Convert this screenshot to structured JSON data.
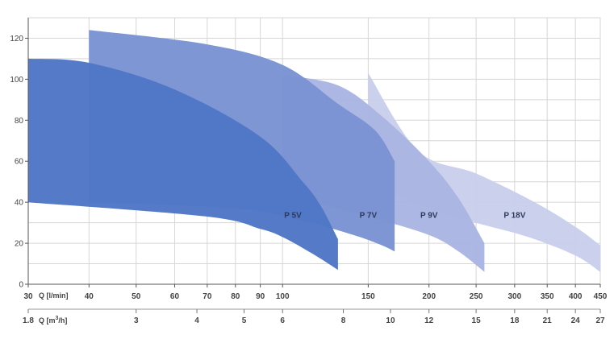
{
  "chart_data": {
    "type": "area",
    "title": "",
    "xlabel": "Q [l/min]",
    "x2label_prefix": "Q [m",
    "x2label_sup": "3",
    "x2label_suffix": "/h]",
    "ylabel": "",
    "x_scale": "log",
    "xlim": [
      30,
      450
    ],
    "ylim": [
      0,
      130
    ],
    "grid": true,
    "y_ticks": [
      0,
      20,
      40,
      60,
      80,
      100,
      120
    ],
    "x_ticks": [
      {
        "value": 30,
        "label": "30"
      },
      {
        "value": 40,
        "label": "40"
      },
      {
        "value": 50,
        "label": "50"
      },
      {
        "value": 60,
        "label": "60"
      },
      {
        "value": 70,
        "label": "70"
      },
      {
        "value": 80,
        "label": "80"
      },
      {
        "value": 90,
        "label": "90"
      },
      {
        "value": 100,
        "label": "100"
      },
      {
        "value": 150,
        "label": "150"
      },
      {
        "value": 200,
        "label": "200"
      },
      {
        "value": 250,
        "label": "250"
      },
      {
        "value": 300,
        "label": "300"
      },
      {
        "value": 350,
        "label": "350"
      },
      {
        "value": 400,
        "label": "400"
      },
      {
        "value": 450,
        "label": "450"
      }
    ],
    "x2_ticks": [
      {
        "value": 1.8,
        "label": "1.8"
      },
      {
        "value": 3,
        "label": "3"
      },
      {
        "value": 4,
        "label": "4"
      },
      {
        "value": 5,
        "label": "5"
      },
      {
        "value": 6,
        "label": "6"
      },
      {
        "value": 8,
        "label": "8"
      },
      {
        "value": 10,
        "label": "10"
      },
      {
        "value": 12,
        "label": "12"
      },
      {
        "value": 15,
        "label": "15"
      },
      {
        "value": 18,
        "label": "18"
      },
      {
        "value": 21,
        "label": "21"
      },
      {
        "value": 24,
        "label": "24"
      },
      {
        "value": 27,
        "label": "27"
      }
    ],
    "series": [
      {
        "name": "P 18V",
        "color": "#c9d0ec",
        "label_pos": {
          "x": 300,
          "y": 34
        },
        "upper": [
          [
            150,
            103
          ],
          [
            190,
            65
          ],
          [
            250,
            54
          ],
          [
            330,
            40
          ],
          [
            400,
            28
          ],
          [
            450,
            19
          ]
        ],
        "lower": [
          [
            150,
            50
          ],
          [
            200,
            37
          ],
          [
            250,
            30
          ],
          [
            320,
            23
          ],
          [
            400,
            14
          ],
          [
            450,
            6
          ]
        ]
      },
      {
        "name": "P 9V",
        "color": "#aab5e2",
        "label_pos": {
          "x": 200,
          "y": 34
        },
        "upper": [
          [
            100,
            102
          ],
          [
            130,
            97
          ],
          [
            160,
            82
          ],
          [
            200,
            60
          ],
          [
            230,
            42
          ],
          [
            260,
            20
          ]
        ],
        "lower": [
          [
            100,
            44
          ],
          [
            150,
            33
          ],
          [
            200,
            24
          ],
          [
            230,
            16
          ],
          [
            260,
            6
          ]
        ]
      },
      {
        "name": "P 7V",
        "color": "#7b93d4",
        "label_pos": {
          "x": 150,
          "y": 34
        },
        "upper": [
          [
            40,
            124
          ],
          [
            70,
            117
          ],
          [
            100,
            107
          ],
          [
            130,
            88
          ],
          [
            155,
            75
          ],
          [
            170,
            60
          ]
        ],
        "lower": [
          [
            40,
            40
          ],
          [
            80,
            37
          ],
          [
            110,
            31
          ],
          [
            140,
            24
          ],
          [
            160,
            19
          ],
          [
            170,
            16
          ]
        ]
      },
      {
        "name": "P 5V",
        "color": "#4f76c6",
        "label_pos": {
          "x": 105,
          "y": 34
        },
        "upper": [
          [
            30,
            110
          ],
          [
            40,
            108
          ],
          [
            60,
            95
          ],
          [
            90,
            72
          ],
          [
            110,
            50
          ],
          [
            120,
            38
          ],
          [
            130,
            22
          ]
        ],
        "lower": [
          [
            30,
            40
          ],
          [
            70,
            33
          ],
          [
            90,
            27
          ],
          [
            100,
            23
          ],
          [
            115,
            15
          ],
          [
            130,
            7
          ]
        ]
      }
    ]
  }
}
